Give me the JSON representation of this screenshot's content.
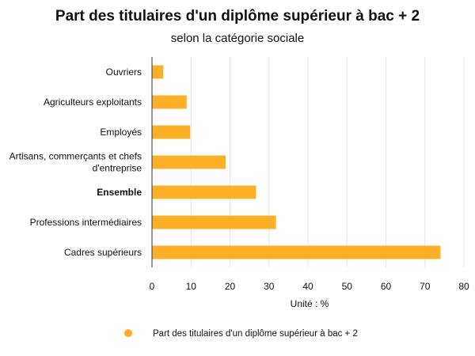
{
  "chart_data": {
    "type": "bar",
    "orientation": "horizontal",
    "title": "Part des titulaires d'un diplôme supérieur à bac + 2",
    "subtitle": "selon la catégorie sociale",
    "xlabel": "Unité : %",
    "xlim": [
      0,
      80
    ],
    "xticks": [
      0,
      10,
      20,
      30,
      40,
      50,
      60,
      70,
      80
    ],
    "grid": true,
    "legend_position": "bottom",
    "color": "#fbb028",
    "categories": [
      {
        "label": "Ouvriers",
        "bold": false
      },
      {
        "label": "Agriculteurs exploitants",
        "bold": false
      },
      {
        "label": "Employés",
        "bold": false
      },
      {
        "label": "Artisans, commerçants et chefs d'entreprise",
        "lines": [
          "Artisans, commerçants et chefs",
          "d'entreprise"
        ],
        "bold": false
      },
      {
        "label": "Ensemble",
        "bold": true
      },
      {
        "label": "Professions intermédiaires",
        "bold": false
      },
      {
        "label": "Cadres supérieurs",
        "bold": false
      }
    ],
    "series": [
      {
        "name": "Part des titulaires d'un diplôme supérieur à bac + 2",
        "values": [
          2.9,
          8.9,
          9.8,
          18.9,
          26.7,
          31.8,
          74.0
        ]
      }
    ]
  }
}
